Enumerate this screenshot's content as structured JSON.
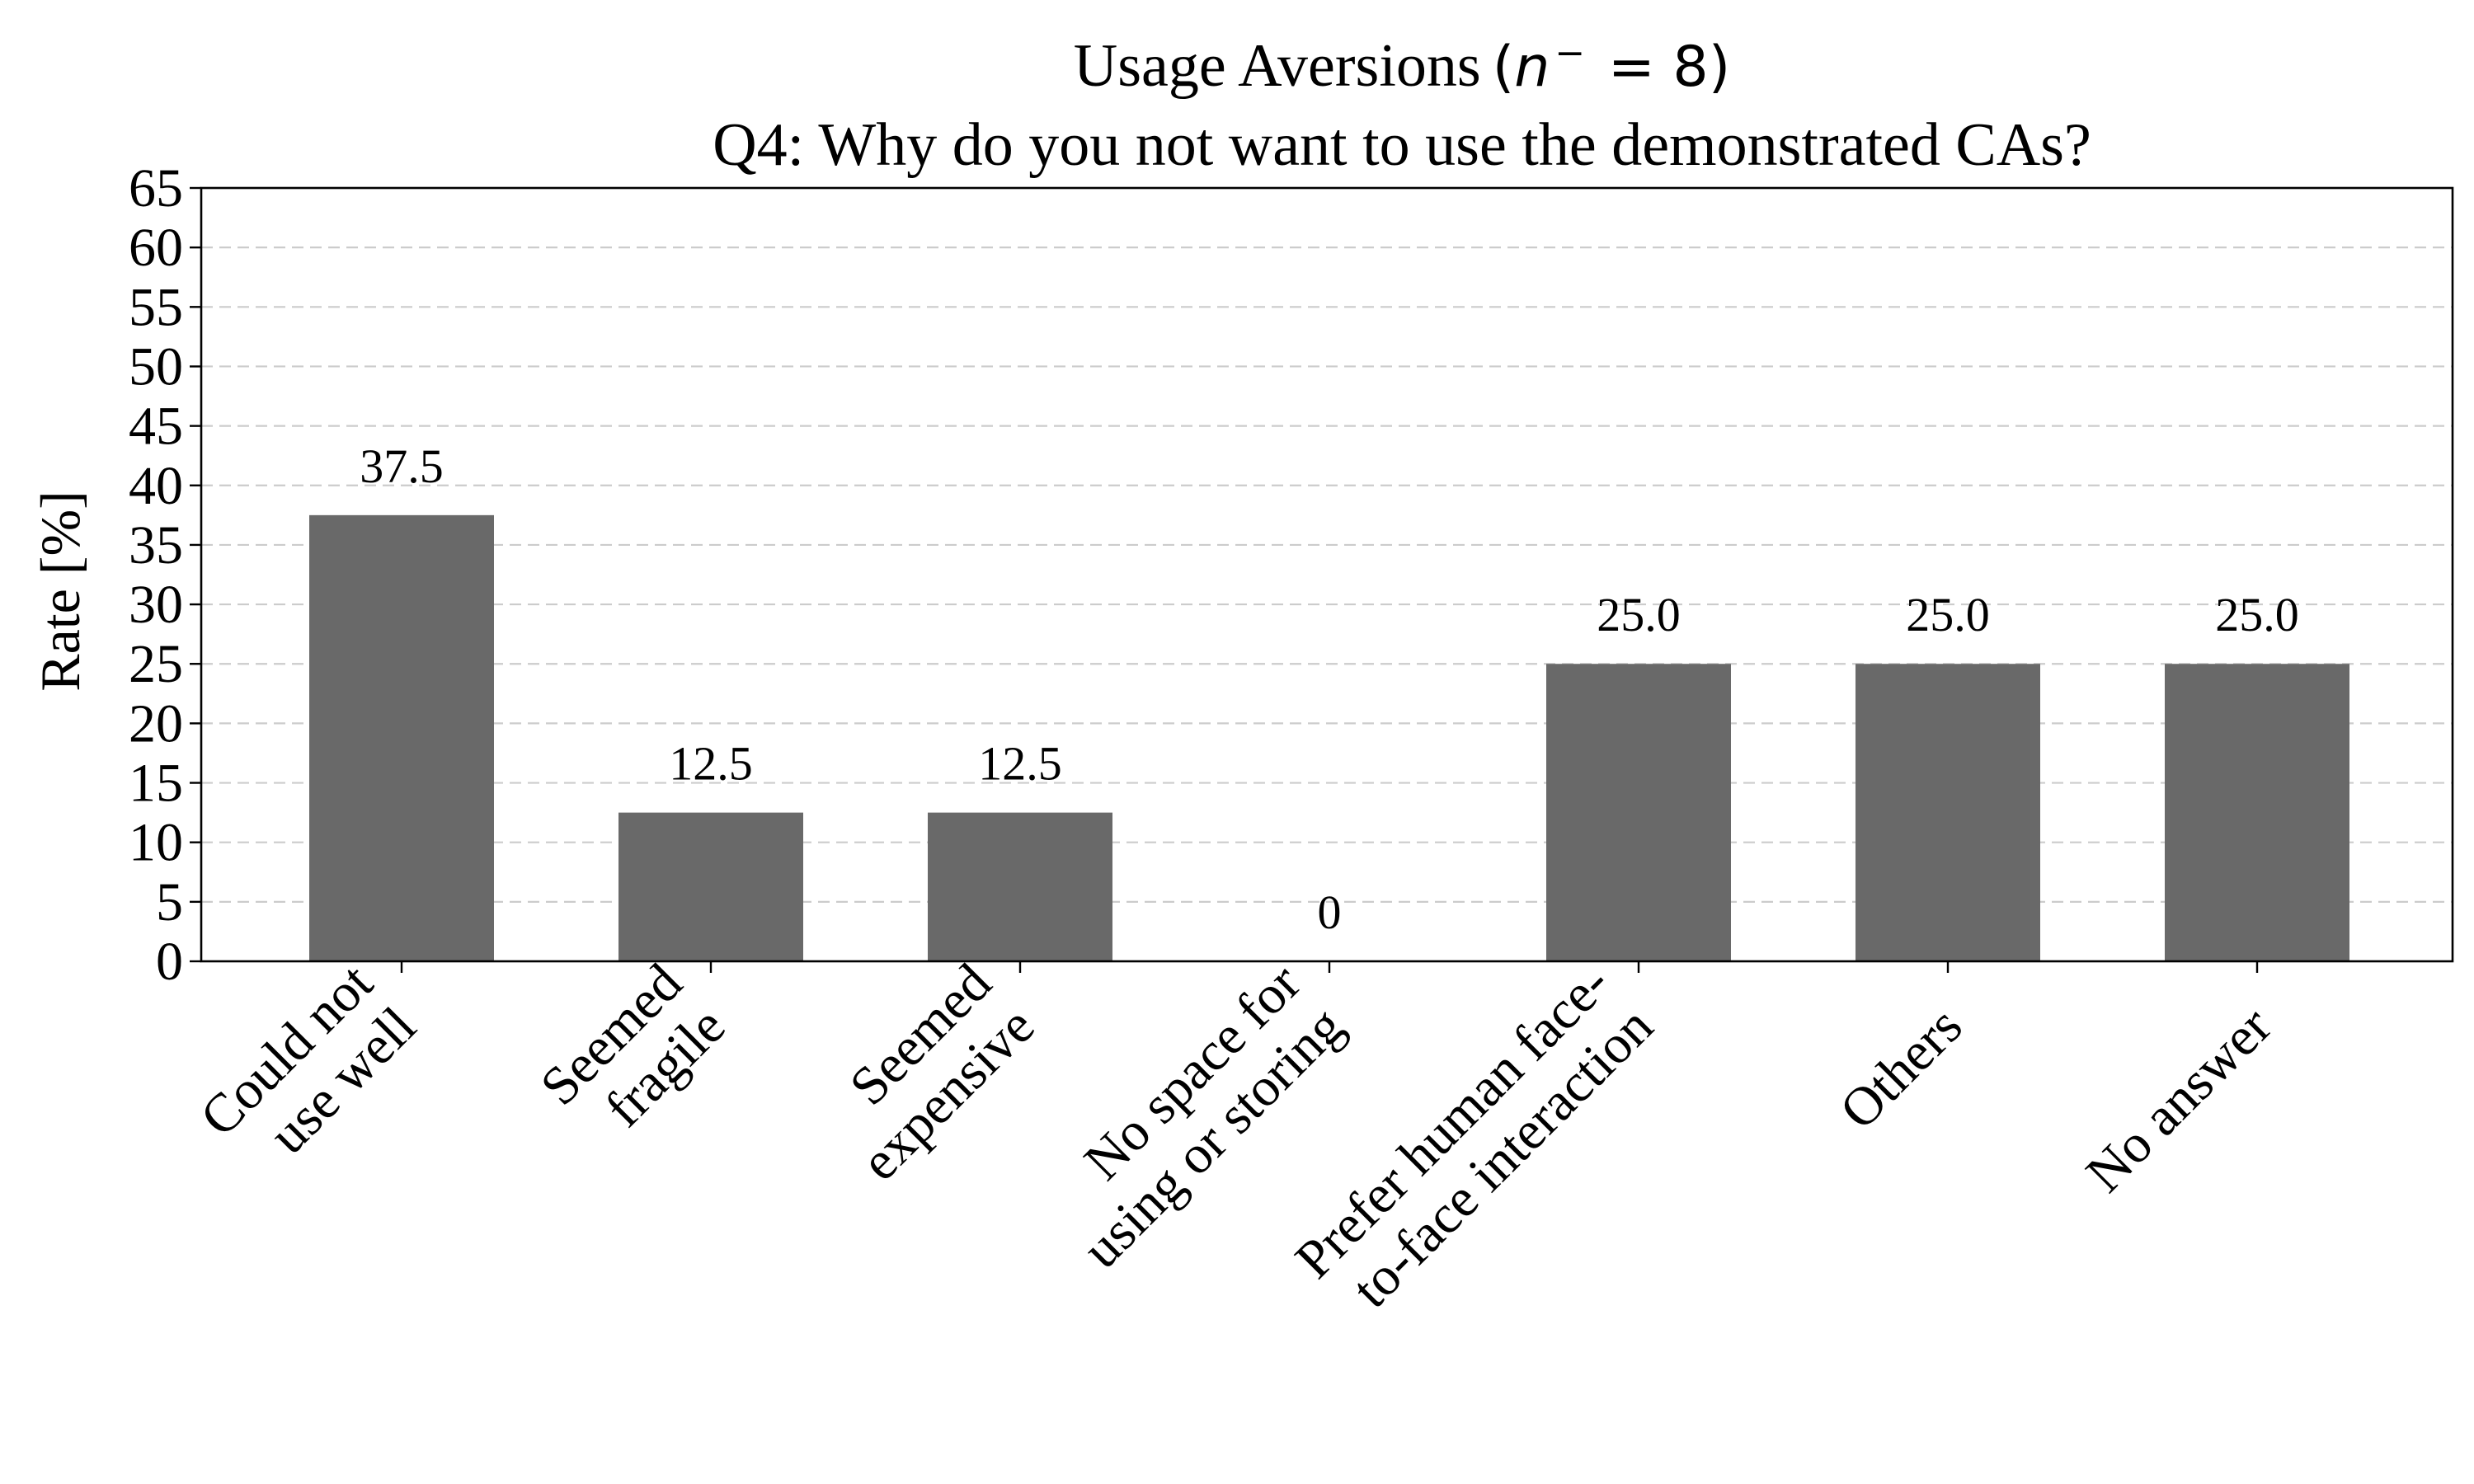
{
  "chart_data": {
    "type": "bar",
    "title": "Usage Aversions",
    "title_math": "(n⁻ = 8)",
    "title_math_parts": {
      "open": "(",
      "var": "n",
      "sup": "−",
      "rest": " = 8)"
    },
    "subtitle": "Q4: Why do you not want to use the demonstrated CAs?",
    "xlabel": "",
    "ylabel": "Rate [%]",
    "ylim": [
      0,
      65
    ],
    "yticks": [
      0,
      5,
      10,
      15,
      20,
      25,
      30,
      35,
      40,
      45,
      50,
      55,
      60,
      65
    ],
    "categories": [
      [
        "Could not",
        "use well"
      ],
      [
        "Seemed",
        "fragile"
      ],
      [
        "Seemed",
        "expensive"
      ],
      [
        "No space for",
        "using or storing"
      ],
      [
        "Prefer human face-",
        "to-face interaction"
      ],
      [
        "Others"
      ],
      [
        "No answer"
      ]
    ],
    "values": [
      37.5,
      12.5,
      12.5,
      0,
      25.0,
      25.0,
      25.0
    ],
    "value_labels": [
      "37.5",
      "12.5",
      "12.5",
      "0",
      "25.0",
      "25.0",
      "25.0"
    ],
    "bar_color": "#696969",
    "grid": "horizontal dashed",
    "legend": "none"
  }
}
